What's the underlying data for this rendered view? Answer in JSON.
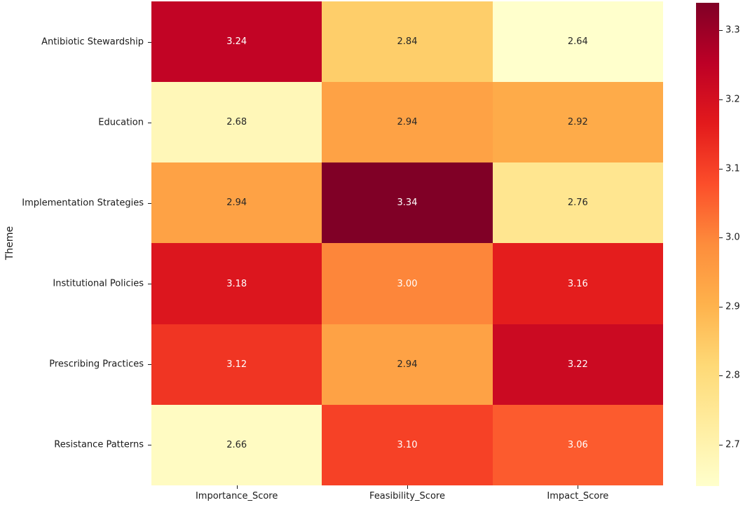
{
  "chart_data": {
    "type": "heatmap",
    "title": "",
    "xlabel": "",
    "ylabel": "Theme",
    "columns": [
      "Importance_Score",
      "Feasibility_Score",
      "Impact_Score"
    ],
    "rows": [
      "Antibiotic Stewardship",
      "Education",
      "Implementation Strategies",
      "Institutional Policies",
      "Prescribing Practices",
      "Resistance Patterns"
    ],
    "values": [
      [
        3.24,
        2.84,
        2.64
      ],
      [
        2.68,
        2.94,
        2.92
      ],
      [
        2.94,
        3.34,
        2.76
      ],
      [
        3.18,
        3.0,
        3.16
      ],
      [
        3.12,
        2.94,
        3.22
      ],
      [
        2.66,
        3.1,
        3.06
      ]
    ],
    "vmin": 2.64,
    "vmax": 3.34,
    "colormap": {
      "name": "YlOrRd",
      "stops": [
        "#ffffcc",
        "#ffeda0",
        "#fed976",
        "#feb24c",
        "#fd8d3c",
        "#fc4e2a",
        "#e31a1c",
        "#bd0026",
        "#800026"
      ]
    },
    "colorbar": {
      "position": "right",
      "ticks": [
        2.7,
        2.8,
        2.9,
        3.0,
        3.1,
        3.2,
        3.3
      ]
    },
    "annotations": {
      "decimals": 2,
      "light_text": "#ffffff",
      "dark_text": "#262626"
    },
    "grid_lines": false,
    "legend": false,
    "background": "#ffffff",
    "tick_label_color": "#1a1a1a"
  }
}
